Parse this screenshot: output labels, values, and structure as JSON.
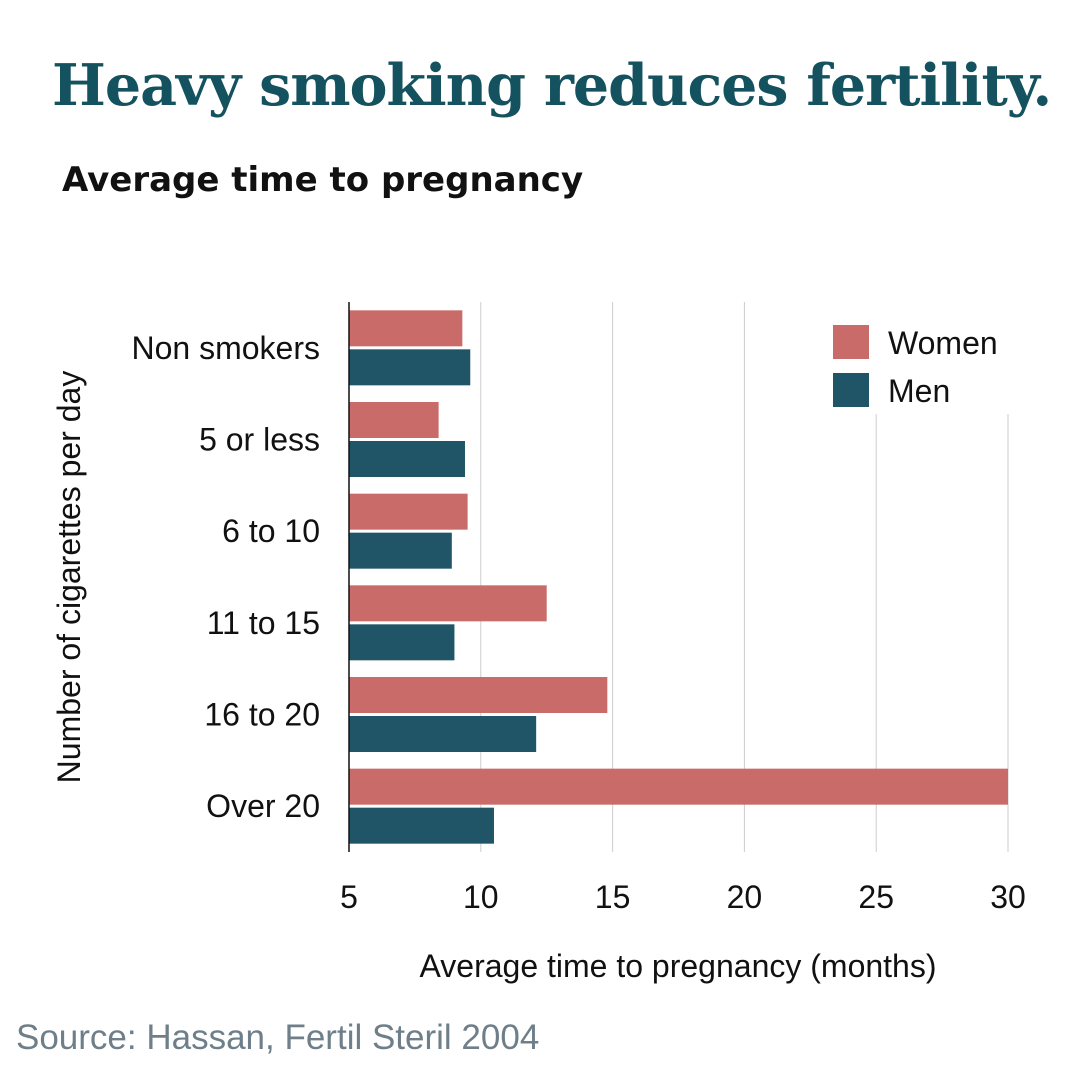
{
  "title": "Heavy smoking reduces fertility.",
  "subtitle": "Average time to pregnancy",
  "source": "Source: Hassan, Fertil Steril 2004",
  "colors": {
    "women": "#c96b68",
    "men": "#1f5566",
    "title": "#13525e",
    "grid": "#cccccc"
  },
  "chart_data": {
    "type": "bar",
    "orientation": "horizontal",
    "categories": [
      "Non smokers",
      "5 or less",
      "6 to 10",
      "11 to 15",
      "16 to 20",
      "Over 20"
    ],
    "series": [
      {
        "name": "Women",
        "values": [
          9.3,
          8.4,
          9.5,
          12.5,
          14.8,
          30
        ]
      },
      {
        "name": "Men",
        "values": [
          9.6,
          9.4,
          8.9,
          9.0,
          12.1,
          10.5
        ]
      }
    ],
    "xlabel": "Average time to pregnancy (months)",
    "ylabel": "Number of cigarettes per day",
    "xlim": [
      5,
      30
    ],
    "xticks": [
      "5",
      "10",
      "15",
      "20",
      "25",
      "30"
    ],
    "grid": "vertical",
    "legend": "top-right"
  }
}
